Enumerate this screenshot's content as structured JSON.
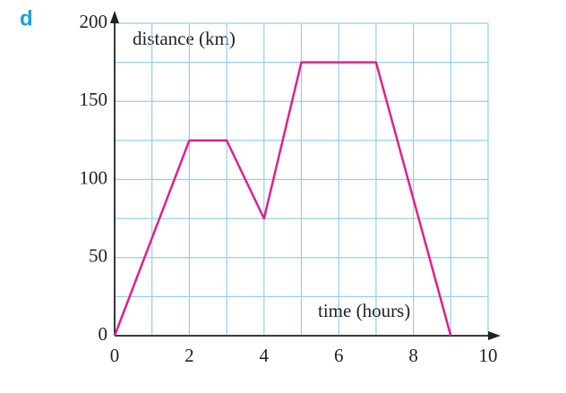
{
  "chart_data": {
    "type": "line",
    "label": "d",
    "ylabel": "distance (km)",
    "xlabel": "time (hours)",
    "x": [
      0,
      2,
      3,
      4,
      5,
      7,
      9
    ],
    "values": [
      0,
      125,
      125,
      75,
      175,
      175,
      0
    ],
    "color": "#e0208c",
    "xlim": [
      0,
      10
    ],
    "ylim": [
      0,
      200
    ],
    "xticks": [
      0,
      2,
      4,
      6,
      8,
      10
    ],
    "yticks": [
      0,
      50,
      100,
      150,
      200
    ],
    "grid": true,
    "grid_color": "#8fd0f0"
  }
}
